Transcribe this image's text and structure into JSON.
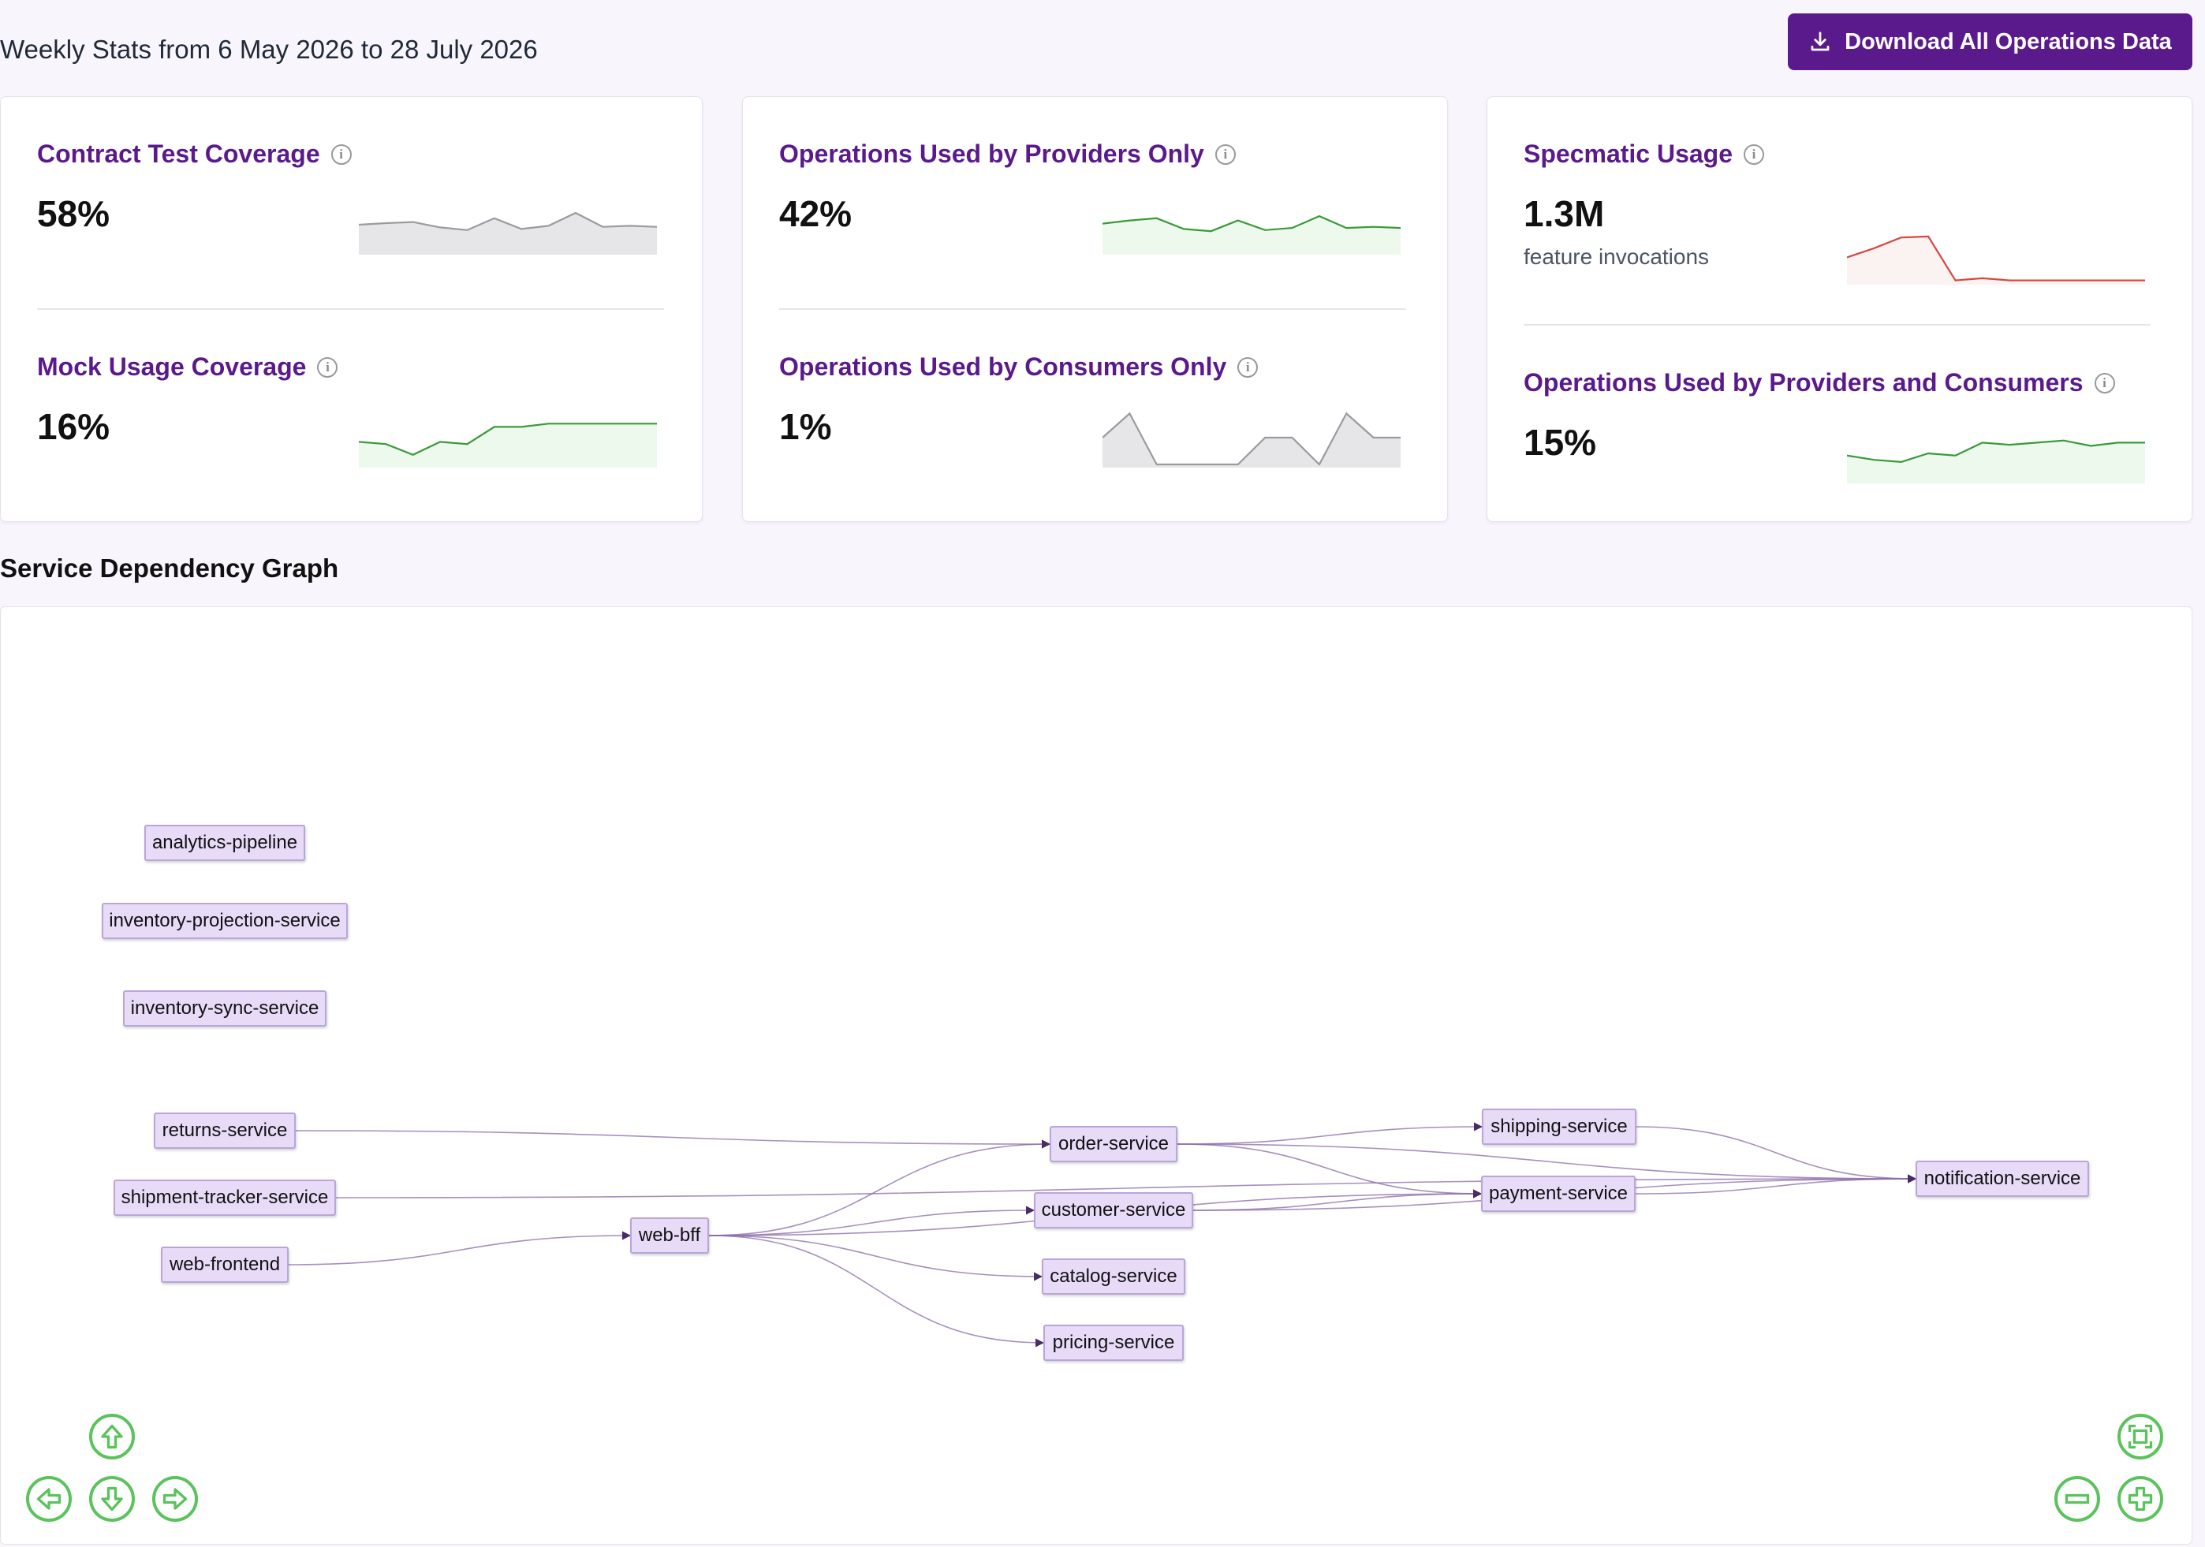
{
  "header": {
    "title": "Weekly Stats from 6 May 2026 to 28 July 2026",
    "download_label": "Download All Operations Data"
  },
  "stats": {
    "contract_test": {
      "title": "Contract Test Coverage",
      "value": "58%",
      "trend": [
        0.5,
        0.53,
        0.55,
        0.45,
        0.4,
        0.62,
        0.42,
        0.48,
        0.72,
        0.46,
        0.48,
        0.46
      ]
    },
    "mock_usage": {
      "title": "Mock Usage Coverage",
      "value": "16%",
      "trend": [
        0.42,
        0.38,
        0.18,
        0.42,
        0.38,
        0.7,
        0.7,
        0.76,
        0.76,
        0.76,
        0.76,
        0.76
      ]
    },
    "providers_only": {
      "title": "Operations Used by Providers Only",
      "value": "42%",
      "trend": [
        0.52,
        0.58,
        0.62,
        0.42,
        0.38,
        0.58,
        0.4,
        0.44,
        0.66,
        0.44,
        0.46,
        0.44
      ]
    },
    "consumers_only": {
      "title": "Operations Used by Consumers Only",
      "value": "1%",
      "trend": [
        0.5,
        0.95,
        0,
        0,
        0,
        0,
        0.5,
        0.5,
        0,
        0.95,
        0.5,
        0.5
      ]
    },
    "specmatic_usage": {
      "title": "Specmatic Usage",
      "value": "1.3M",
      "subtitle": "feature invocations",
      "trend": [
        0.45,
        0.62,
        0.82,
        0.84,
        0.02,
        0.06,
        0.02,
        0.02,
        0.02,
        0.02,
        0.02,
        0.02
      ]
    },
    "providers_and_consumers": {
      "title": "Operations Used by Providers and Consumers",
      "value": "15%",
      "trend": [
        0.46,
        0.38,
        0.34,
        0.5,
        0.46,
        0.7,
        0.66,
        0.7,
        0.74,
        0.64,
        0.7,
        0.7
      ]
    }
  },
  "colors": {
    "accent": "#5b1a8c",
    "trend_gray": "#9a9aa0",
    "trend_green": "#3a9a3a",
    "trend_red": "#d9473f",
    "control_green": "#5bc35b"
  },
  "graph": {
    "title": "Service Dependency Graph",
    "nodes": [
      {
        "id": "analytics-pipeline",
        "label": "analytics-pipeline"
      },
      {
        "id": "inventory-projection-service",
        "label": "inventory-projection-service"
      },
      {
        "id": "inventory-sync-service",
        "label": "inventory-sync-service"
      },
      {
        "id": "returns-service",
        "label": "returns-service"
      },
      {
        "id": "shipment-tracker-service",
        "label": "shipment-tracker-service"
      },
      {
        "id": "web-frontend",
        "label": "web-frontend"
      },
      {
        "id": "web-bff",
        "label": "web-bff"
      },
      {
        "id": "order-service",
        "label": "order-service"
      },
      {
        "id": "customer-service",
        "label": "customer-service"
      },
      {
        "id": "catalog-service",
        "label": "catalog-service"
      },
      {
        "id": "pricing-service",
        "label": "pricing-service"
      },
      {
        "id": "shipping-service",
        "label": "shipping-service"
      },
      {
        "id": "payment-service",
        "label": "payment-service"
      },
      {
        "id": "notification-service",
        "label": "notification-service"
      }
    ],
    "edges": [
      [
        "returns-service",
        "order-service"
      ],
      [
        "shipment-tracker-service",
        "notification-service"
      ],
      [
        "web-frontend",
        "web-bff"
      ],
      [
        "web-bff",
        "order-service"
      ],
      [
        "web-bff",
        "customer-service"
      ],
      [
        "web-bff",
        "catalog-service"
      ],
      [
        "web-bff",
        "pricing-service"
      ],
      [
        "web-bff",
        "payment-service"
      ],
      [
        "order-service",
        "shipping-service"
      ],
      [
        "order-service",
        "payment-service"
      ],
      [
        "order-service",
        "notification-service"
      ],
      [
        "customer-service",
        "notification-service"
      ],
      [
        "customer-service",
        "payment-service"
      ],
      [
        "shipping-service",
        "notification-service"
      ],
      [
        "payment-service",
        "notification-service"
      ]
    ],
    "controls": {
      "pan_up": "arrow-up-icon",
      "pan_left": "arrow-left-icon",
      "pan_down": "arrow-down-icon",
      "pan_right": "arrow-right-icon",
      "fit": "fit-screen-icon",
      "zoom_out": "minus-icon",
      "zoom_in": "plus-icon"
    }
  }
}
